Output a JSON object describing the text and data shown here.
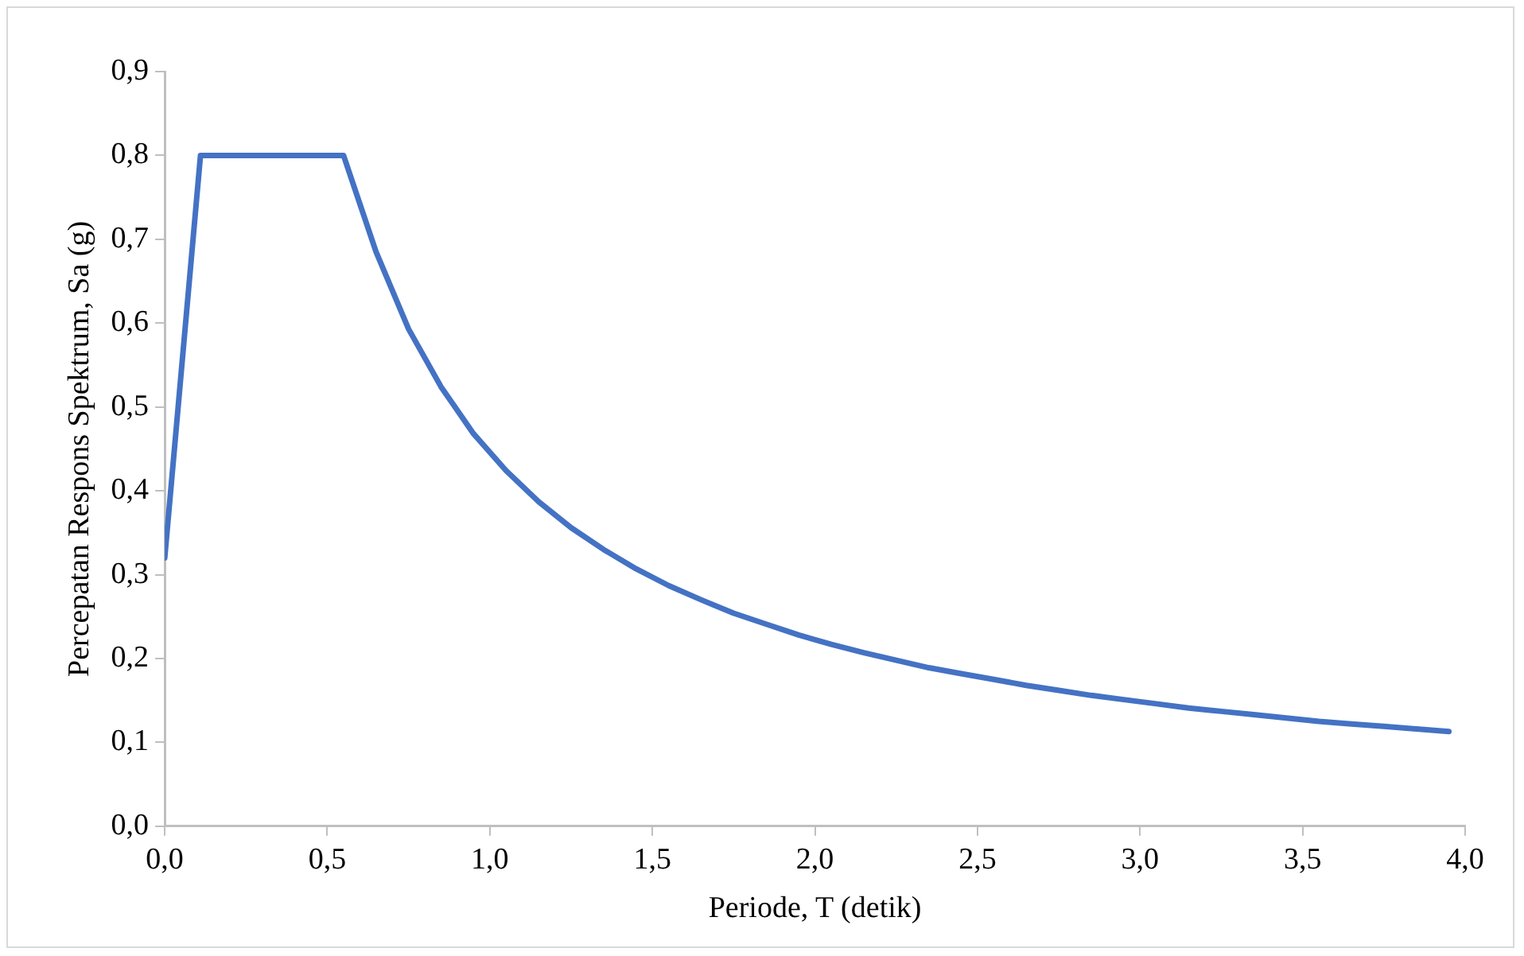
{
  "chart_data": {
    "type": "line",
    "xlabel": "Periode, T (detik)",
    "ylabel": "Percepatan Respons Spektrum, Sa (g)",
    "x": [
      0,
      0.11,
      0.55,
      0.65,
      0.75,
      0.85,
      0.95,
      1.05,
      1.15,
      1.25,
      1.35,
      1.45,
      1.55,
      1.65,
      1.75,
      1.85,
      1.95,
      2.05,
      2.15,
      2.25,
      2.35,
      2.45,
      2.55,
      2.65,
      2.75,
      2.85,
      2.95,
      3.05,
      3.15,
      3.25,
      3.35,
      3.45,
      3.55,
      3.65,
      3.75,
      3.85,
      3.95
    ],
    "series": [
      {
        "color": "#4472c4",
        "values": [
          0.32,
          0.8,
          0.8,
          0.685,
          0.593,
          0.524,
          0.468,
          0.424,
          0.387,
          0.356,
          0.33,
          0.307,
          0.287,
          0.27,
          0.254,
          0.241,
          0.228,
          0.217,
          0.207,
          0.198,
          0.189,
          0.182,
          0.175,
          0.168,
          0.162,
          0.156,
          0.151,
          0.146,
          0.141,
          0.137,
          0.133,
          0.129,
          0.125,
          0.122,
          0.119,
          0.116,
          0.113
        ]
      }
    ],
    "xlim": [
      0,
      4
    ],
    "xticks": [
      {
        "value": 0,
        "label": "0,0"
      },
      {
        "value": 0.5,
        "label": "0,5"
      },
      {
        "value": 1,
        "label": "1,0"
      },
      {
        "value": 1.5,
        "label": "1,5"
      },
      {
        "value": 2,
        "label": "2,0"
      },
      {
        "value": 2.5,
        "label": "2,5"
      },
      {
        "value": 3,
        "label": "3,0"
      },
      {
        "value": 3.5,
        "label": "3,5"
      },
      {
        "value": 4,
        "label": "4,0"
      }
    ],
    "ylim": [
      0,
      0.9
    ],
    "yticks": [
      {
        "value": 0,
        "label": "0,0"
      },
      {
        "value": 0.1,
        "label": "0,1"
      },
      {
        "value": 0.2,
        "label": "0,2"
      },
      {
        "value": 0.3,
        "label": "0,3"
      },
      {
        "value": 0.4,
        "label": "0,4"
      },
      {
        "value": 0.5,
        "label": "0,5"
      },
      {
        "value": 0.6,
        "label": "0,6"
      },
      {
        "value": 0.7,
        "label": "0,7"
      },
      {
        "value": 0.8,
        "label": "0,8"
      },
      {
        "value": 0.9,
        "label": "0,9"
      }
    ],
    "grid": false,
    "legend": false,
    "marker": "none",
    "line_style": "solid"
  }
}
